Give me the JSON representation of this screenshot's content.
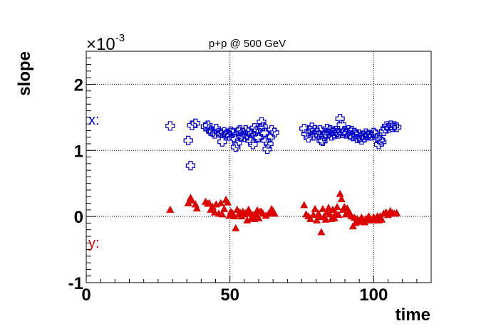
{
  "chart_data": {
    "type": "scatter",
    "title": "p+p @ 500 GeV",
    "xlabel": "time",
    "ylabel": "slope",
    "y_multiplier_label": "×10",
    "y_multiplier_exp": "-3",
    "xlim": [
      0,
      120
    ],
    "ylim": [
      -1,
      2.5
    ],
    "x_ticks": [
      0,
      50,
      100
    ],
    "y_ticks": [
      -1,
      0,
      1,
      2
    ],
    "grid": true,
    "annotations": [
      {
        "text": "x:",
        "color": "#0000cc"
      },
      {
        "text": "y:",
        "color": "#dd0000"
      }
    ],
    "series": [
      {
        "marker": "open-cross",
        "color": "#0000cc",
        "points": [
          [
            29.2,
            1.37
          ],
          [
            35.5,
            1.15
          ],
          [
            36.3,
            0.77
          ],
          [
            36.8,
            1.38
          ],
          [
            38.0,
            1.41
          ],
          [
            41.5,
            1.36
          ],
          [
            42.3,
            1.38
          ],
          [
            42.8,
            1.32
          ],
          [
            43.3,
            1.29
          ],
          [
            44.0,
            1.28
          ],
          [
            44.7,
            1.25
          ],
          [
            45.2,
            1.33
          ],
          [
            46.1,
            1.27
          ],
          [
            46.8,
            1.26
          ],
          [
            47.3,
            1.13
          ],
          [
            48.0,
            1.28
          ],
          [
            48.6,
            1.24
          ],
          [
            49.2,
            1.26
          ],
          [
            49.8,
            1.22
          ],
          [
            50.3,
            1.29
          ],
          [
            51.0,
            1.27
          ],
          [
            51.5,
            1.18
          ],
          [
            52.0,
            1.05
          ],
          [
            52.5,
            1.11
          ],
          [
            53.0,
            1.29
          ],
          [
            53.5,
            1.31
          ],
          [
            54.0,
            1.21
          ],
          [
            54.5,
            1.27
          ],
          [
            55.0,
            1.2
          ],
          [
            55.5,
            1.31
          ],
          [
            56.0,
            1.22
          ],
          [
            56.5,
            1.28
          ],
          [
            57.0,
            1.15
          ],
          [
            57.5,
            1.26
          ],
          [
            58.0,
            1.09
          ],
          [
            58.5,
            1.34
          ],
          [
            59.0,
            1.29
          ],
          [
            59.5,
            1.2
          ],
          [
            60.0,
            1.19
          ],
          [
            60.5,
            1.34
          ],
          [
            61.0,
            1.43
          ],
          [
            61.5,
            1.36
          ],
          [
            62.0,
            1.27
          ],
          [
            62.5,
            1.15
          ],
          [
            63.0,
            1.02
          ],
          [
            63.5,
            1.1
          ],
          [
            64.0,
            1.2
          ],
          [
            64.5,
            1.31
          ],
          [
            65.5,
            1.27
          ],
          [
            75.8,
            1.33
          ],
          [
            76.5,
            1.25
          ],
          [
            77.3,
            1.19
          ],
          [
            78.0,
            1.3
          ],
          [
            78.5,
            1.35
          ],
          [
            79.0,
            1.22
          ],
          [
            79.6,
            1.31
          ],
          [
            80.2,
            1.27
          ],
          [
            80.8,
            1.23
          ],
          [
            81.3,
            1.31
          ],
          [
            81.8,
            1.15
          ],
          [
            82.3,
            1.14
          ],
          [
            82.8,
            1.21
          ],
          [
            83.3,
            1.26
          ],
          [
            83.8,
            1.33
          ],
          [
            84.3,
            1.26
          ],
          [
            84.8,
            1.31
          ],
          [
            85.3,
            1.22
          ],
          [
            85.8,
            1.29
          ],
          [
            86.3,
            1.24
          ],
          [
            86.8,
            1.3
          ],
          [
            87.3,
            1.27
          ],
          [
            87.8,
            1.25
          ],
          [
            88.3,
            1.48
          ],
          [
            88.8,
            1.39
          ],
          [
            89.3,
            1.26
          ],
          [
            89.8,
            1.29
          ],
          [
            90.3,
            1.25
          ],
          [
            90.8,
            1.27
          ],
          [
            91.3,
            1.31
          ],
          [
            91.8,
            1.23
          ],
          [
            92.3,
            1.3
          ],
          [
            92.8,
            1.21
          ],
          [
            93.3,
            1.27
          ],
          [
            93.8,
            1.24
          ],
          [
            94.3,
            1.18
          ],
          [
            94.8,
            1.25
          ],
          [
            95.3,
            1.2
          ],
          [
            95.8,
            1.16
          ],
          [
            96.3,
            1.23
          ],
          [
            96.8,
            1.19
          ],
          [
            97.3,
            1.26
          ],
          [
            97.8,
            1.22
          ],
          [
            98.3,
            1.24
          ],
          [
            99.0,
            1.22
          ],
          [
            100.0,
            1.27
          ],
          [
            100.6,
            1.25
          ],
          [
            101.3,
            1.19
          ],
          [
            101.8,
            1.09
          ],
          [
            102.3,
            1.16
          ],
          [
            102.8,
            1.13
          ],
          [
            103.5,
            1.29
          ],
          [
            104.0,
            1.33
          ],
          [
            104.5,
            1.37
          ],
          [
            105.3,
            1.34
          ],
          [
            106.0,
            1.38
          ],
          [
            106.5,
            1.35
          ],
          [
            107.2,
            1.37
          ],
          [
            108.0,
            1.35
          ]
        ]
      },
      {
        "marker": "filled-triangle",
        "color": "#dd0000",
        "points": [
          [
            29.2,
            0.1
          ],
          [
            35.5,
            0.2
          ],
          [
            36.3,
            0.28
          ],
          [
            36.8,
            0.24
          ],
          [
            38.0,
            0.18
          ],
          [
            38.5,
            0.12
          ],
          [
            41.5,
            0.22
          ],
          [
            42.3,
            0.19
          ],
          [
            42.8,
            0.2
          ],
          [
            43.3,
            0.1
          ],
          [
            44.0,
            0.14
          ],
          [
            44.7,
            0.06
          ],
          [
            45.2,
            0.18
          ],
          [
            46.1,
            0.04
          ],
          [
            46.8,
            0.2
          ],
          [
            47.3,
            0.03
          ],
          [
            48.0,
            0.11
          ],
          [
            48.6,
            0.25
          ],
          [
            49.2,
            0.21
          ],
          [
            49.8,
            0.01
          ],
          [
            50.3,
            0.07
          ],
          [
            51.0,
            0.04
          ],
          [
            51.5,
            0.0
          ],
          [
            52.0,
            -0.18
          ],
          [
            52.5,
            0.1
          ],
          [
            53.0,
            0.03
          ],
          [
            53.5,
            0.06
          ],
          [
            54.0,
            0.0
          ],
          [
            54.5,
            0.07
          ],
          [
            55.0,
            0.03
          ],
          [
            55.5,
            0.05
          ],
          [
            56.0,
            -0.06
          ],
          [
            56.5,
            0.1
          ],
          [
            57.0,
            0.04
          ],
          [
            57.5,
            -0.03
          ],
          [
            58.0,
            0.02
          ],
          [
            58.5,
            -0.04
          ],
          [
            59.0,
            0.03
          ],
          [
            59.5,
            0.09
          ],
          [
            60.0,
            -0.03
          ],
          [
            60.5,
            0.07
          ],
          [
            61.0,
            0.07
          ],
          [
            61.5,
            0.04
          ],
          [
            62.5,
            0.01
          ],
          [
            63.5,
            0.04
          ],
          [
            64.0,
            0.06
          ],
          [
            64.5,
            0.11
          ],
          [
            65.0,
            0.08
          ],
          [
            65.5,
            0.04
          ],
          [
            75.8,
            0.17
          ],
          [
            76.5,
            0.03
          ],
          [
            77.3,
            0.0
          ],
          [
            78.0,
            -0.04
          ],
          [
            79.0,
            0.02
          ],
          [
            79.6,
            0.11
          ],
          [
            80.2,
            -0.06
          ],
          [
            80.8,
            0.04
          ],
          [
            81.3,
            -0.01
          ],
          [
            81.8,
            -0.24
          ],
          [
            82.3,
            0.11
          ],
          [
            82.8,
            0.0
          ],
          [
            83.3,
            -0.05
          ],
          [
            83.8,
            0.06
          ],
          [
            84.3,
            0.13
          ],
          [
            84.8,
            0.03
          ],
          [
            85.3,
            -0.04
          ],
          [
            85.8,
            0.1
          ],
          [
            86.3,
            -0.03
          ],
          [
            86.8,
            0.05
          ],
          [
            87.3,
            0.14
          ],
          [
            87.8,
            0.02
          ],
          [
            88.3,
            0.34
          ],
          [
            88.8,
            0.26
          ],
          [
            89.3,
            0.1
          ],
          [
            89.8,
            0.14
          ],
          [
            90.3,
            0.03
          ],
          [
            90.8,
            0.12
          ],
          [
            91.3,
            0.05
          ],
          [
            91.8,
            0.04
          ],
          [
            92.3,
            0.0
          ],
          [
            92.8,
            -0.15
          ],
          [
            93.3,
            -0.02
          ],
          [
            93.8,
            -0.1
          ],
          [
            94.3,
            -0.04
          ],
          [
            94.8,
            -0.08
          ],
          [
            95.3,
            -0.05
          ],
          [
            95.8,
            -0.02
          ],
          [
            96.3,
            -0.05
          ],
          [
            96.8,
            -0.09
          ],
          [
            97.3,
            -0.04
          ],
          [
            97.8,
            -0.06
          ],
          [
            98.3,
            0.0
          ],
          [
            99.0,
            -0.06
          ],
          [
            100.0,
            -0.01
          ],
          [
            100.6,
            -0.06
          ],
          [
            101.3,
            0.0
          ],
          [
            101.8,
            -0.06
          ],
          [
            102.3,
            0.0
          ],
          [
            102.8,
            -0.05
          ],
          [
            103.5,
            0.04
          ],
          [
            104.3,
            0.06
          ],
          [
            105.0,
            0.02
          ],
          [
            105.8,
            0.08
          ],
          [
            106.5,
            0.05
          ],
          [
            107.2,
            0.04
          ],
          [
            108.0,
            0.05
          ]
        ]
      }
    ]
  }
}
